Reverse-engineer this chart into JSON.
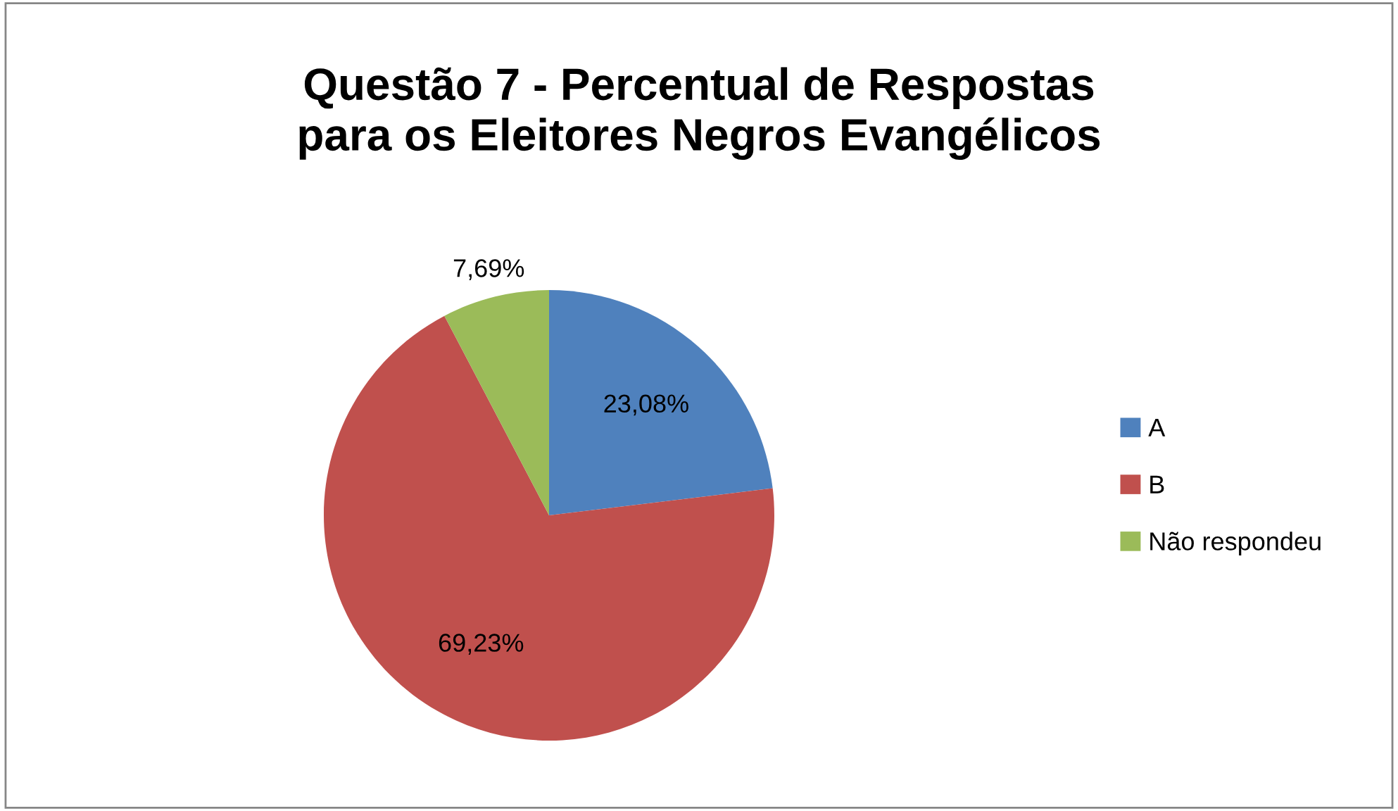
{
  "chart_data": {
    "type": "pie",
    "title": "Questão 7 - Percentual de Respostas\npara os Eleitores Negros Evangélicos",
    "categories": [
      "A",
      "B",
      "Não respondeu"
    ],
    "values": [
      23.08,
      69.23,
      7.69
    ],
    "colors": [
      "#4f81bd",
      "#c0504d",
      "#9bbb59"
    ],
    "value_labels": [
      "23,08%",
      "69,23%",
      "7,69%"
    ],
    "legend": "right"
  }
}
